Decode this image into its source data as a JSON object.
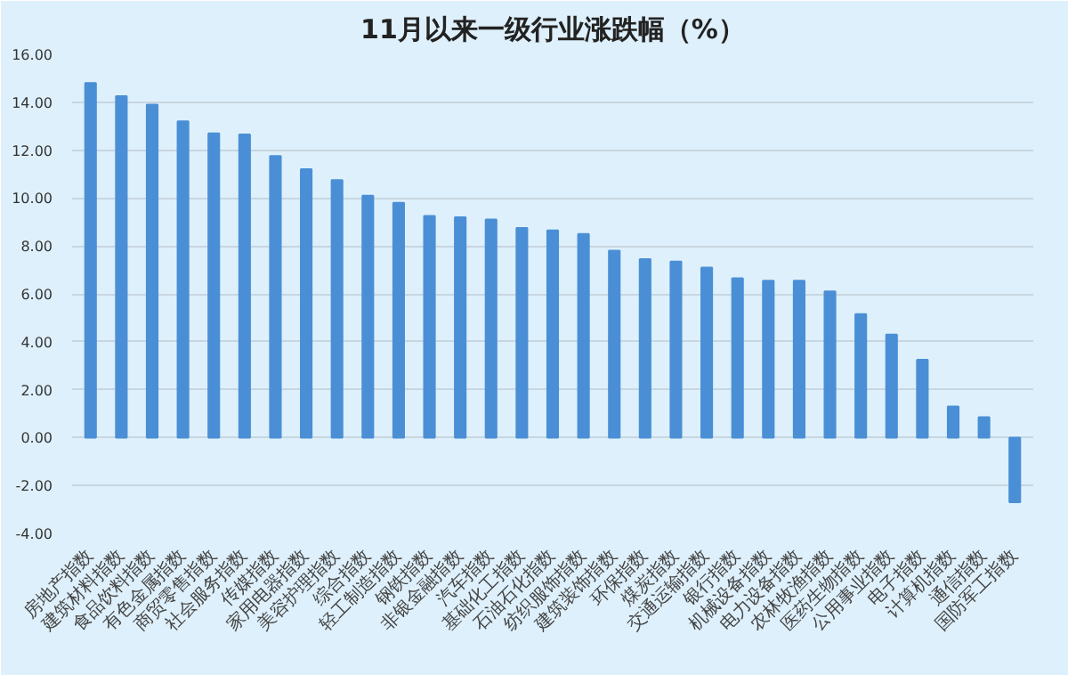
{
  "chart_data": {
    "type": "bar",
    "title": "11月以来一级行业涨跌幅（%）",
    "categories": [
      "房地产指数",
      "建筑材料指数",
      "食品饮料指数",
      "有色金属指数",
      "商贸零售指数",
      "社会服务指数",
      "传媒指数",
      "家用电器指数",
      "美容护理指数",
      "综合指数",
      "轻工制造指数",
      "钢铁指数",
      "非银金融指数",
      "汽车指数",
      "基础化工指数",
      "石油石化指数",
      "纺织服饰指数",
      "建筑装饰指数",
      "环保指数",
      "煤炭指数",
      "交通运输指数",
      "银行指数",
      "机械设备指数",
      "电力设备指数",
      "农林牧渔指数",
      "医药生物指数",
      "公用事业指数",
      "电子指数",
      "计算机指数",
      "通信指数",
      "国防军工指数"
    ],
    "values": [
      14.8,
      14.25,
      13.9,
      13.2,
      12.7,
      12.65,
      11.75,
      11.2,
      10.75,
      10.1,
      9.8,
      9.25,
      9.2,
      9.1,
      8.75,
      8.65,
      8.5,
      7.8,
      7.45,
      7.35,
      7.1,
      6.65,
      6.55,
      6.55,
      6.1,
      5.15,
      4.3,
      3.25,
      1.3,
      0.85,
      -2.7
    ],
    "color": "#4a8fd6",
    "ylim": [
      -4,
      16
    ],
    "yticks": [
      {
        "value": -4,
        "label": "-4.00"
      },
      {
        "value": -2,
        "label": "-2.00"
      },
      {
        "value": 0,
        "label": "0.00"
      },
      {
        "value": 2,
        "label": "2.00"
      },
      {
        "value": 4,
        "label": "4.00"
      },
      {
        "value": 6,
        "label": "6.00"
      },
      {
        "value": 8,
        "label": "8.00"
      },
      {
        "value": 10,
        "label": "10.00"
      },
      {
        "value": 12,
        "label": "12.00"
      },
      {
        "value": 14,
        "label": "14.00"
      },
      {
        "value": 16,
        "label": "16.00"
      }
    ],
    "grid": "y"
  }
}
